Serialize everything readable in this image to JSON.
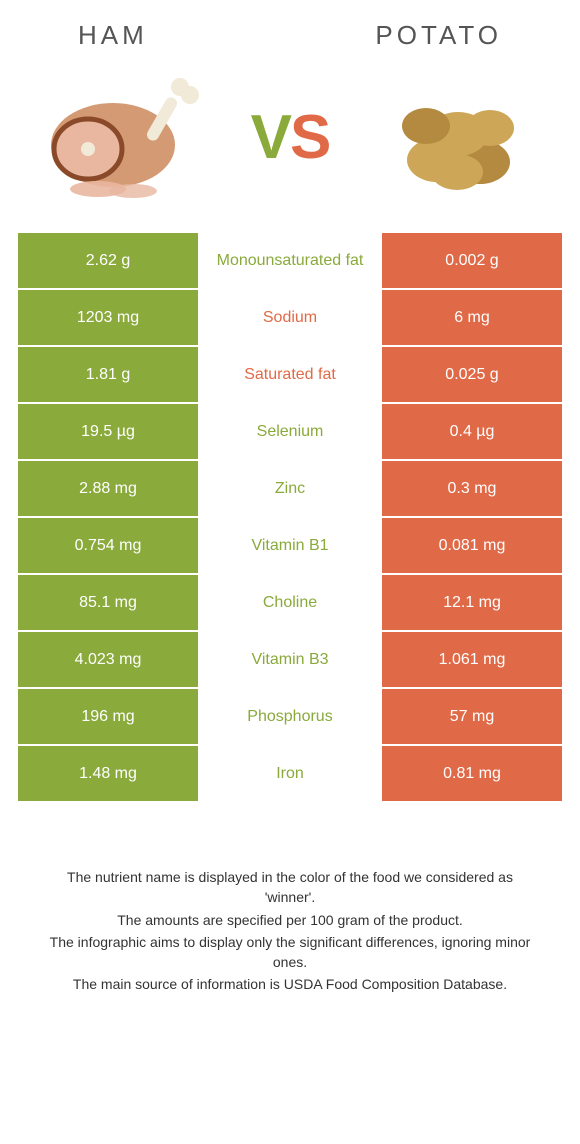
{
  "titles": {
    "left": "Ham",
    "right": "Potato"
  },
  "vs": {
    "v": "V",
    "s": "S"
  },
  "colors": {
    "green": "#8aaa3b",
    "orange": "#e06a47",
    "ham_body": "#d49a74",
    "ham_slice": "#e9b7a0",
    "ham_rind": "#8a4a2a",
    "bone": "#f2ead8",
    "potato": "#cda657",
    "potato_dark": "#b38a3f"
  },
  "rows": [
    {
      "left": "2.62 g",
      "mid": "Monounsaturated fat",
      "right": "0.002 g",
      "winner": "green"
    },
    {
      "left": "1203 mg",
      "mid": "Sodium",
      "right": "6 mg",
      "winner": "orange"
    },
    {
      "left": "1.81 g",
      "mid": "Saturated fat",
      "right": "0.025 g",
      "winner": "orange"
    },
    {
      "left": "19.5 µg",
      "mid": "Selenium",
      "right": "0.4 µg",
      "winner": "green"
    },
    {
      "left": "2.88 mg",
      "mid": "Zinc",
      "right": "0.3 mg",
      "winner": "green"
    },
    {
      "left": "0.754 mg",
      "mid": "Vitamin B1",
      "right": "0.081 mg",
      "winner": "green"
    },
    {
      "left": "85.1 mg",
      "mid": "Choline",
      "right": "12.1 mg",
      "winner": "green"
    },
    {
      "left": "4.023 mg",
      "mid": "Vitamin B3",
      "right": "1.061 mg",
      "winner": "green"
    },
    {
      "left": "196 mg",
      "mid": "Phosphorus",
      "right": "57 mg",
      "winner": "green"
    },
    {
      "left": "1.48 mg",
      "mid": "Iron",
      "right": "0.81 mg",
      "winner": "green"
    }
  ],
  "footnotes": [
    "The nutrient name is displayed in the color of the food we considered as 'winner'.",
    "The amounts are specified per 100 gram of the product.",
    "The infographic aims to display only the significant differences, ignoring minor ones.",
    "The main source of information is USDA Food Composition Database."
  ]
}
